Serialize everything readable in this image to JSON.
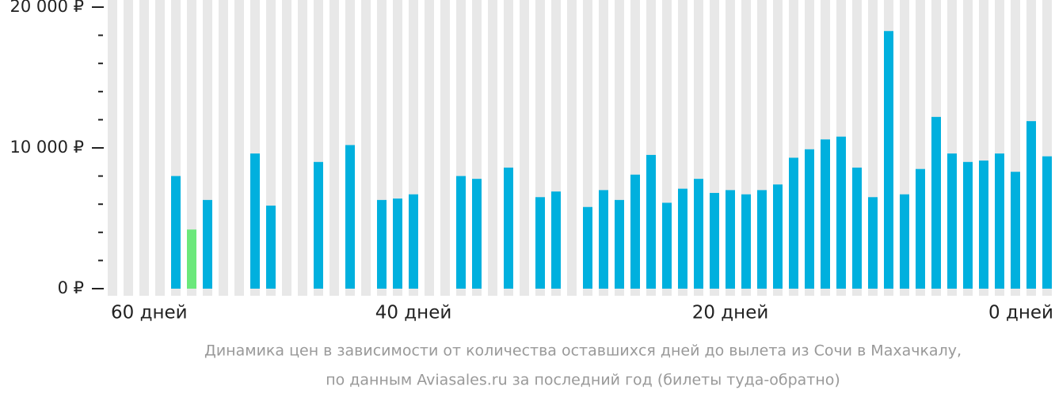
{
  "chart_data": {
    "type": "bar",
    "caption": [
      "Динамика цен в зависимости от количества оставшихся дней до вылета из Сочи в Махачкалу,",
      "по данным Aviasales.ru за последний год (билеты туда-обратно)"
    ],
    "x": [
      59,
      58,
      57,
      56,
      55,
      54,
      53,
      52,
      51,
      50,
      49,
      48,
      47,
      46,
      45,
      44,
      43,
      42,
      41,
      40,
      39,
      38,
      37,
      36,
      35,
      34,
      33,
      32,
      31,
      30,
      29,
      28,
      27,
      26,
      25,
      24,
      23,
      22,
      21,
      20,
      19,
      18,
      17,
      16,
      15,
      14,
      13,
      12,
      11,
      10,
      9,
      8,
      7,
      6,
      5,
      4,
      3,
      2,
      1,
      0
    ],
    "values": [
      null,
      null,
      null,
      null,
      8000,
      4200,
      6300,
      null,
      null,
      9600,
      5900,
      null,
      null,
      9000,
      null,
      10200,
      null,
      6300,
      6400,
      6700,
      null,
      null,
      8000,
      7800,
      null,
      8600,
      null,
      6500,
      6900,
      null,
      5800,
      7000,
      6300,
      8100,
      9500,
      6100,
      7100,
      7800,
      6800,
      7000,
      6700,
      7000,
      7400,
      9300,
      9900,
      10600,
      10800,
      8600,
      6500,
      18300,
      6700,
      8500,
      12200,
      9600,
      9000,
      9100,
      9600,
      8300,
      11900,
      9400
    ],
    "color": "#00b0de",
    "min_color": "#6be87b",
    "column_color": "#e8e8e8",
    "xlim": [
      60,
      -0.5
    ],
    "xticks": [
      {
        "value": 60,
        "label": "60 дней"
      },
      {
        "value": 40,
        "label": "40 дней"
      },
      {
        "value": 20,
        "label": "20 дней"
      },
      {
        "value": 0,
        "label": "0 дней"
      }
    ],
    "ylim": [
      0,
      20000
    ],
    "yticks": [
      {
        "value": 0,
        "label": "0 ₽"
      },
      {
        "value": 10000,
        "label": "10 000 ₽"
      },
      {
        "value": 20000,
        "label": "20 000 ₽"
      }
    ],
    "yminor_ticks": [
      2000,
      4000,
      6000,
      8000,
      12000,
      14000,
      16000,
      18000
    ]
  }
}
